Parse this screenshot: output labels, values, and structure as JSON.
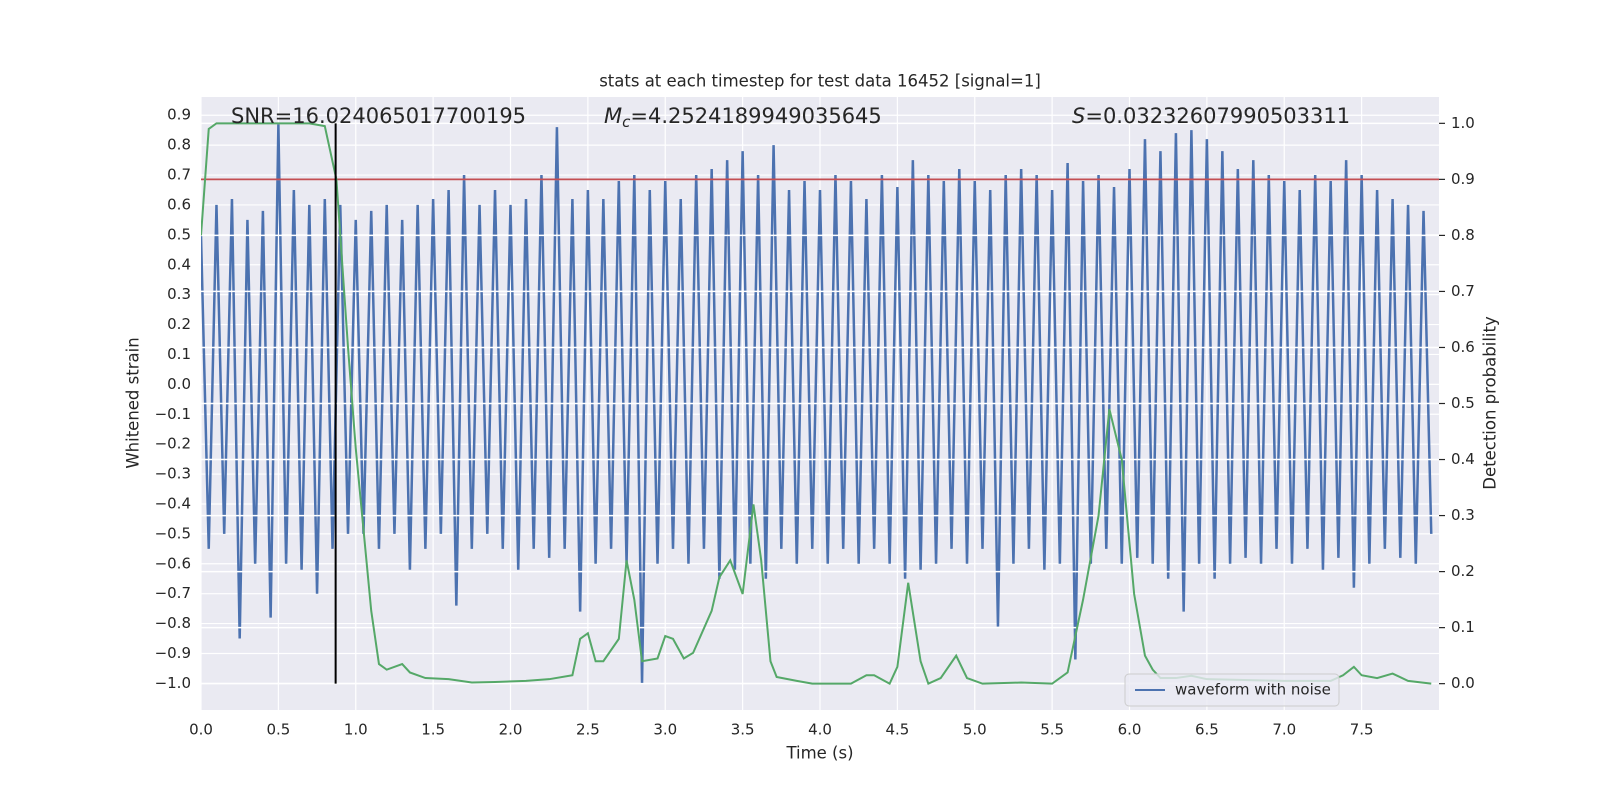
{
  "chart_data": {
    "type": "line",
    "title": "stats at each timestep for test data 16452 [signal=1]",
    "xlabel": "Time (s)",
    "ylabel": "Whitened strain",
    "y2label": "Detection probability",
    "xlim": [
      0,
      8.0
    ],
    "ylim": [
      -1.089,
      0.961
    ],
    "y2lim": [
      -0.047,
      1.047
    ],
    "grid": true,
    "legend": "lower right",
    "xticks": [
      {
        "value": 0,
        "label": "0.0"
      },
      0.5,
      {
        "value": 1,
        "label": "1.0"
      },
      1.5,
      {
        "value": 2,
        "label": "2.0"
      },
      2.5,
      {
        "value": 3,
        "label": "3.0"
      },
      3.5,
      {
        "value": 4,
        "label": "4.0"
      },
      4.5,
      {
        "value": 5,
        "label": "5.0"
      },
      5.5,
      {
        "value": 6,
        "label": "6.0"
      },
      6.5,
      {
        "value": 7,
        "label": "7.0"
      },
      7.5
    ],
    "yticks": [
      {
        "value": -1,
        "label": "−1.0"
      },
      {
        "value": -0.9,
        "label": "−0.9"
      },
      {
        "value": -0.8,
        "label": "−0.8"
      },
      {
        "value": -0.7,
        "label": "−0.7"
      },
      {
        "value": -0.6,
        "label": "−0.6"
      },
      {
        "value": -0.5,
        "label": "−0.5"
      },
      {
        "value": -0.4,
        "label": "−0.4"
      },
      {
        "value": -0.3,
        "label": "−0.3"
      },
      {
        "value": -0.2,
        "label": "−0.2"
      },
      {
        "value": -0.1,
        "label": "−0.1"
      },
      {
        "value": 0,
        "label": "0.0"
      },
      0.1,
      0.2,
      0.3,
      0.4,
      0.5,
      0.6,
      0.7,
      0.8,
      0.9
    ],
    "y2ticks": [
      {
        "value": 0,
        "label": "0.0"
      },
      0.1,
      0.2,
      0.3,
      0.4,
      0.5,
      0.6,
      0.7,
      0.8,
      0.9,
      {
        "value": 1,
        "label": "1.0"
      }
    ],
    "series": [
      {
        "name": "waveform with noise",
        "color": "#4c72b0",
        "x": [
          0,
          0.05,
          0.1,
          0.15,
          0.2,
          0.25,
          0.3,
          0.35,
          0.4,
          0.45,
          0.5,
          0.55,
          0.6,
          0.65,
          0.7,
          0.75,
          0.8,
          0.85,
          0.9,
          0.95,
          1,
          1.05,
          1.1,
          1.15,
          1.2,
          1.25,
          1.3,
          1.35,
          1.4,
          1.45,
          1.5,
          1.55,
          1.6,
          1.65,
          1.7,
          1.75,
          1.8,
          1.85,
          1.9,
          1.95,
          2,
          2.05,
          2.1,
          2.15,
          2.2,
          2.25,
          2.3,
          2.35,
          2.4,
          2.45,
          2.5,
          2.55,
          2.6,
          2.65,
          2.7,
          2.75,
          2.8,
          2.85,
          2.9,
          2.95,
          3,
          3.05,
          3.1,
          3.15,
          3.2,
          3.25,
          3.3,
          3.35,
          3.4,
          3.45,
          3.5,
          3.55,
          3.6,
          3.65,
          3.7,
          3.75,
          3.8,
          3.85,
          3.9,
          3.95,
          4,
          4.05,
          4.1,
          4.15,
          4.2,
          4.25,
          4.3,
          4.35,
          4.4,
          4.45,
          4.5,
          4.55,
          4.6,
          4.65,
          4.7,
          4.75,
          4.8,
          4.85,
          4.9,
          4.95,
          5,
          5.05,
          5.1,
          5.15,
          5.2,
          5.25,
          5.3,
          5.35,
          5.4,
          5.45,
          5.5,
          5.55,
          5.6,
          5.65,
          5.7,
          5.75,
          5.8,
          5.85,
          5.9,
          5.95,
          6,
          6.05,
          6.1,
          6.15,
          6.2,
          6.25,
          6.3,
          6.35,
          6.4,
          6.45,
          6.5,
          6.55,
          6.6,
          6.65,
          6.7,
          6.75,
          6.8,
          6.85,
          6.9,
          6.95,
          7,
          7.05,
          7.1,
          7.15,
          7.2,
          7.25,
          7.3,
          7.35,
          7.4,
          7.45,
          7.5,
          7.55,
          7.6,
          7.65,
          7.7,
          7.75,
          7.8,
          7.85,
          7.9,
          7.95
        ],
        "values": [
          0.5,
          -0.55,
          0.6,
          -0.5,
          0.62,
          -0.85,
          0.55,
          -0.6,
          0.58,
          -0.78,
          0.87,
          -0.6,
          0.65,
          -0.62,
          0.6,
          -0.7,
          0.62,
          -0.55,
          0.6,
          -0.5,
          0.55,
          -0.5,
          0.58,
          -0.55,
          0.6,
          -0.5,
          0.55,
          -0.62,
          0.6,
          -0.55,
          0.62,
          -0.5,
          0.65,
          -0.74,
          0.7,
          -0.55,
          0.6,
          -0.5,
          0.65,
          -0.55,
          0.6,
          -0.62,
          0.62,
          -0.55,
          0.7,
          -0.58,
          0.86,
          -0.55,
          0.62,
          -0.76,
          0.65,
          -0.6,
          0.62,
          -0.55,
          0.68,
          -0.6,
          0.7,
          -1.0,
          0.65,
          -0.6,
          0.68,
          -0.55,
          0.62,
          -0.6,
          0.7,
          -0.55,
          0.72,
          -0.65,
          0.75,
          -0.62,
          0.78,
          -0.6,
          0.7,
          -0.65,
          0.8,
          -0.55,
          0.65,
          -0.6,
          0.68,
          -0.55,
          0.65,
          -0.6,
          0.7,
          -0.55,
          0.68,
          -0.6,
          0.62,
          -0.55,
          0.7,
          -0.6,
          0.66,
          -0.65,
          0.75,
          -0.62,
          0.7,
          -0.6,
          0.68,
          -0.55,
          0.72,
          -0.6,
          0.68,
          -0.55,
          0.65,
          -0.81,
          0.7,
          -0.6,
          0.72,
          -0.55,
          0.7,
          -0.62,
          0.65,
          -0.6,
          0.74,
          -0.92,
          0.68,
          -0.6,
          0.7,
          -0.55,
          0.66,
          -0.6,
          0.72,
          -0.58,
          0.82,
          -0.6,
          0.78,
          -0.65,
          0.84,
          -0.76,
          0.85,
          -0.6,
          0.82,
          -0.65,
          0.78,
          -0.6,
          0.72,
          -0.58,
          0.75,
          -0.6,
          0.7,
          -0.55,
          0.68,
          -0.6,
          0.65,
          -0.55,
          0.7,
          -0.62,
          0.68,
          -0.58,
          0.75,
          -0.68,
          0.7,
          -0.6,
          0.65,
          -0.55,
          0.62,
          -0.58,
          0.6,
          -0.6,
          0.58,
          -0.5
        ]
      },
      {
        "color": "#55a868",
        "axis": "y2",
        "x": [
          0,
          0.05,
          0.1,
          0.2,
          0.3,
          0.4,
          0.5,
          0.6,
          0.7,
          0.8,
          0.875,
          0.95,
          1.0,
          1.1,
          1.15,
          1.2,
          1.3,
          1.35,
          1.45,
          1.6,
          1.75,
          1.9,
          2.1,
          2.25,
          2.4,
          2.45,
          2.5,
          2.55,
          2.6,
          2.7,
          2.75,
          2.8,
          2.85,
          2.95,
          3.0,
          3.05,
          3.12,
          3.18,
          3.3,
          3.35,
          3.42,
          3.5,
          3.57,
          3.62,
          3.68,
          3.72,
          3.85,
          3.95,
          4.2,
          4.3,
          4.35,
          4.45,
          4.5,
          4.57,
          4.65,
          4.7,
          4.78,
          4.88,
          4.95,
          5.05,
          5.3,
          5.5,
          5.6,
          5.7,
          5.8,
          5.87,
          5.95,
          6.03,
          6.1,
          6.15,
          6.2,
          6.3,
          6.4,
          6.5,
          7.0,
          7.3,
          7.38,
          7.45,
          7.5,
          7.6,
          7.7,
          7.8,
          7.95
        ],
        "values": [
          0.8,
          0.99,
          1,
          1,
          1,
          1,
          1,
          1,
          1,
          0.995,
          0.9,
          0.6,
          0.42,
          0.13,
          0.035,
          0.025,
          0.035,
          0.02,
          0.01,
          0.008,
          0.002,
          0.003,
          0.005,
          0.008,
          0.015,
          0.08,
          0.09,
          0.04,
          0.04,
          0.08,
          0.22,
          0.15,
          0.04,
          0.045,
          0.085,
          0.08,
          0.045,
          0.055,
          0.13,
          0.19,
          0.22,
          0.16,
          0.32,
          0.22,
          0.04,
          0.012,
          0.005,
          0.0,
          0.0,
          0.015,
          0.015,
          0.0,
          0.03,
          0.18,
          0.04,
          0.0,
          0.01,
          0.05,
          0.01,
          0.0,
          0.002,
          0.0,
          0.02,
          0.15,
          0.3,
          0.49,
          0.4,
          0.16,
          0.05,
          0.025,
          0.01,
          0.01,
          0.014,
          0.008,
          0.005,
          0.005,
          0.015,
          0.03,
          0.015,
          0.01,
          0.018,
          0.005,
          0.0
        ]
      }
    ],
    "hlines": [
      {
        "y": 0.9,
        "axis": "y2",
        "color": "#c44e52"
      }
    ],
    "vlines": [
      {
        "x": 0.87,
        "ymin": 0,
        "ymax": 1,
        "axis": "y2",
        "color": "#000000"
      }
    ],
    "annotations": [
      {
        "text": "SNR=16.024065017700195"
      },
      {
        "symbol": "M",
        "subscript": "c",
        "value": "=4.2524189949035645"
      },
      {
        "symbol": "S",
        "value": "=0.03232607990503311"
      }
    ]
  }
}
